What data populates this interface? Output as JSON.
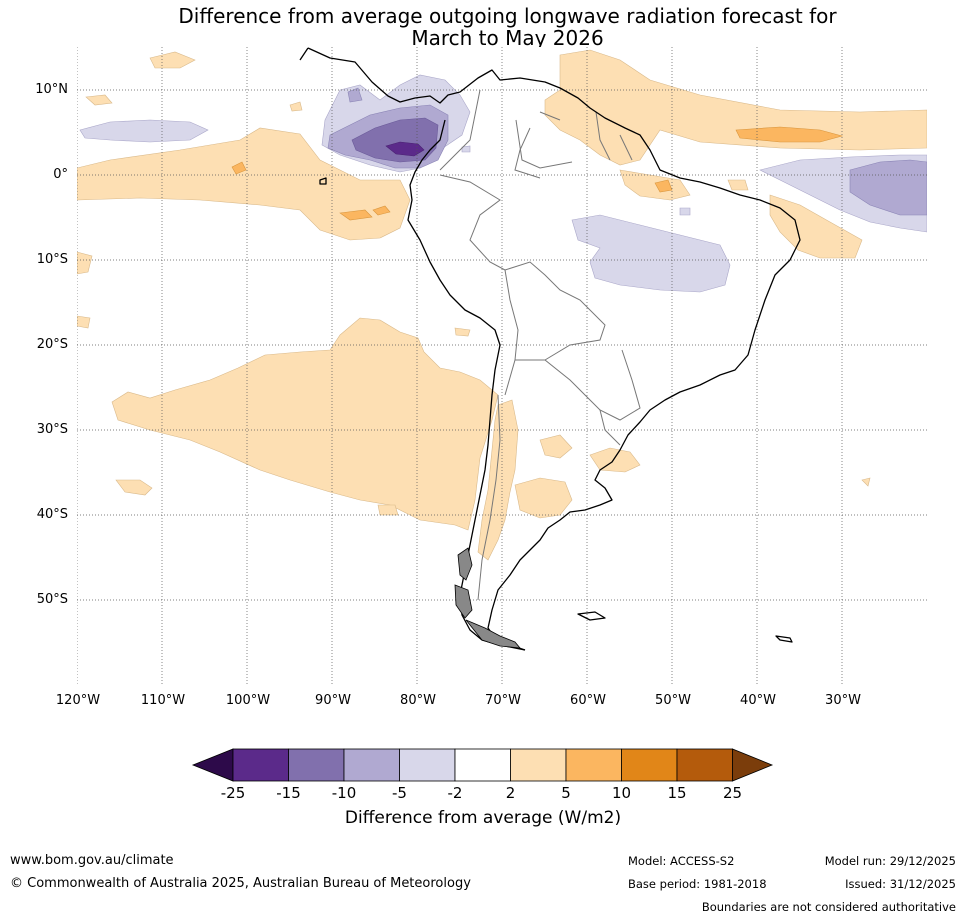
{
  "title": {
    "line1": "Difference from average outgoing longwave radiation forecast for",
    "line2": "March to May 2026"
  },
  "map": {
    "region": "South America",
    "lat_labels": [
      "10°N",
      "0°",
      "10°S",
      "20°S",
      "30°S",
      "40°S",
      "50°S"
    ],
    "lon_labels": [
      "120°W",
      "110°W",
      "100°W",
      "90°W",
      "80°W",
      "70°W",
      "60°W",
      "50°W",
      "40°W",
      "30°W"
    ]
  },
  "colorbar": {
    "ticks": [
      "-25",
      "-15",
      "-10",
      "-5",
      "-2",
      "2",
      "5",
      "10",
      "15",
      "25"
    ],
    "colors": {
      "under": "#2d0a4a",
      "c_25_15": "#5b2a8a",
      "c_15_10": "#8170ad",
      "c_10_5": "#b0a9d1",
      "c_5_2": "#d8d7ea",
      "c_2_2": "#ffffff",
      "c2_5": "#fddfb3",
      "c5_10": "#fbb660",
      "c10_15": "#e18618",
      "c15_25": "#b45b0c",
      "over": "#7b3d0b"
    },
    "label": "Difference from average (W/m2)"
  },
  "footer": {
    "website": "www.bom.gov.au/climate",
    "copyright": "© Commonwealth of Australia 2025, Australian Bureau of Meteorology",
    "model": "Model: ACCESS-S2",
    "base_period": "Base period: 1981-2018",
    "model_run": "Model run: 29/12/2025",
    "issued": "Issued: 31/12/2025",
    "disclaimer": "Boundaries are not considered authoritative"
  }
}
